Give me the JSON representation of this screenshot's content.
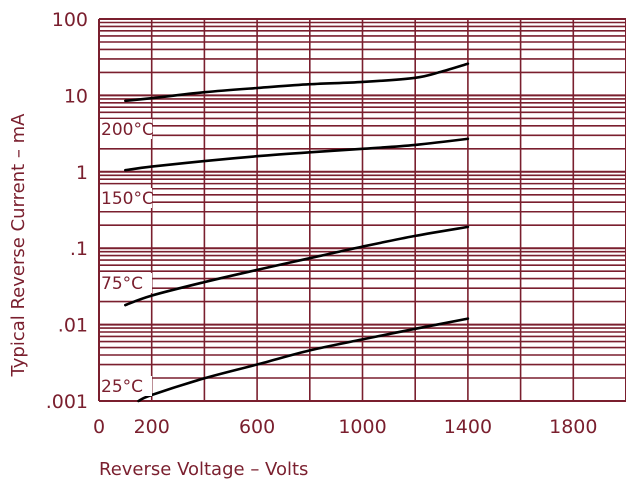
{
  "chart_data": {
    "type": "line",
    "title": "",
    "xlabel": "Reverse Voltage – Volts",
    "ylabel": "Typical Reverse Current – mA",
    "xlim": [
      0,
      2000
    ],
    "ylim": [
      0.001,
      100
    ],
    "y_scale": "log",
    "grid": true,
    "x_ticks": [
      {
        "value": 0,
        "label": "0"
      },
      {
        "value": 200,
        "label": "200"
      },
      {
        "value": 600,
        "label": "600"
      },
      {
        "value": 1000,
        "label": "1000"
      },
      {
        "value": 1400,
        "label": "1400"
      },
      {
        "value": 1800,
        "label": "1800"
      }
    ],
    "y_ticks": [
      {
        "value": 0.001,
        "label": ".001"
      },
      {
        "value": 0.01,
        "label": ".01"
      },
      {
        "value": 0.1,
        "label": ".1"
      },
      {
        "value": 1,
        "label": "1"
      },
      {
        "value": 10,
        "label": "10"
      },
      {
        "value": 100,
        "label": "100"
      }
    ],
    "series": [
      {
        "name": "200°C",
        "x": [
          100,
          200,
          400,
          600,
          800,
          1000,
          1200,
          1300,
          1400
        ],
        "y": [
          8.5,
          9.2,
          11,
          12.5,
          14,
          15,
          17,
          20.5,
          26
        ]
      },
      {
        "name": "150°C",
        "x": [
          100,
          200,
          400,
          600,
          800,
          1000,
          1200,
          1400
        ],
        "y": [
          1.05,
          1.17,
          1.38,
          1.6,
          1.8,
          2.0,
          2.25,
          2.7
        ]
      },
      {
        "name": "75°C",
        "x": [
          100,
          200,
          400,
          600,
          800,
          1000,
          1200,
          1400
        ],
        "y": [
          0.018,
          0.024,
          0.036,
          0.052,
          0.074,
          0.105,
          0.145,
          0.19
        ]
      },
      {
        "name": "25°C",
        "x": [
          150,
          200,
          400,
          600,
          800,
          1000,
          1200,
          1400
        ],
        "y": [
          0.001,
          0.0012,
          0.00198,
          0.003,
          0.0046,
          0.0064,
          0.0088,
          0.012
        ]
      }
    ],
    "colors": {
      "grid": "#7a1f2e",
      "curve": "#000000",
      "text": "#7a1f2e",
      "background": "#ffffff"
    }
  }
}
